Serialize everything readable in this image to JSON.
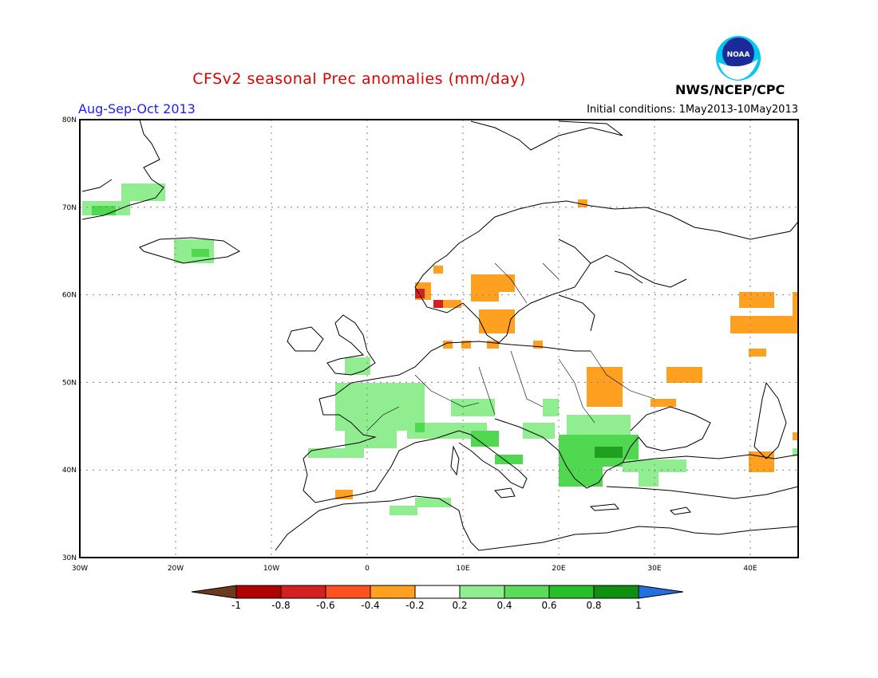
{
  "title": "CFSv2 seasonal Prec anomalies (mm/day)",
  "season": "Aug-Sep-Oct 2013",
  "initial_conditions": "Initial conditions: 1May2013-10May2013",
  "agency": "NWS/NCEP/CPC",
  "logo_text": "NOAA",
  "map": {
    "lon_labels": [
      "30W",
      "20W",
      "10W",
      "0",
      "10E",
      "20E",
      "30E",
      "40E"
    ],
    "lat_labels": [
      "30N",
      "40N",
      "50N",
      "60N",
      "70N",
      "80N"
    ],
    "lon_values": [
      -30,
      -20,
      -10,
      0,
      10,
      20,
      30,
      40
    ],
    "lat_values": [
      30,
      40,
      50,
      60,
      70,
      80
    ],
    "lon_range": [
      -30,
      45
    ],
    "lat_range": [
      30,
      80
    ]
  },
  "colorbar": {
    "labels": [
      "-1",
      "-0.8",
      "-0.6",
      "-0.4",
      "-0.2",
      "0.2",
      "0.4",
      "0.6",
      "0.8",
      "1"
    ],
    "colors": [
      "#6b3a1f",
      "#b00000",
      "#d42020",
      "#ff5020",
      "#ffa020",
      "#ffffff",
      "#90ee90",
      "#5adc5a",
      "#28c028",
      "#109010",
      "#2070e0"
    ]
  },
  "anomaly_colors": {
    "dry_strong": "#d42020",
    "dry": "#ffa020",
    "wet_light": "#90ee90",
    "wet": "#50d850",
    "wet_strong": "#20a020"
  }
}
